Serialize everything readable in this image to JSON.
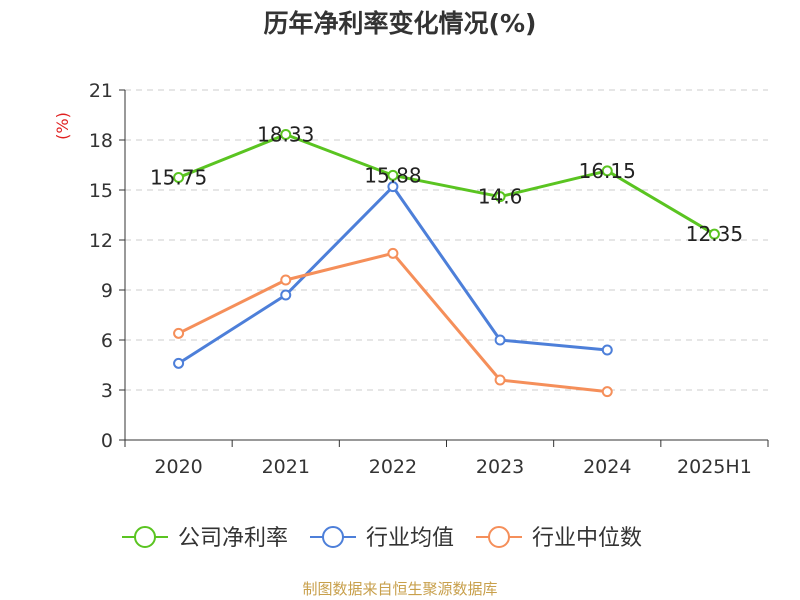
{
  "title": "历年净利率变化情况(%)",
  "source": "制图数据来自恒生聚源数据库",
  "chart_data": {
    "type": "line",
    "title": "历年净利率变化情况(%)",
    "ylabel": "(%)",
    "xlabel": "",
    "categories": [
      "2020",
      "2021",
      "2022",
      "2023",
      "2024",
      "2025H1"
    ],
    "ylim": [
      0,
      21
    ],
    "yticks": [
      0,
      3,
      6,
      9,
      12,
      15,
      18,
      21
    ],
    "grid": "horizontal dashed",
    "legend_position": "bottom",
    "series": [
      {
        "name": "公司净利率",
        "color": "#5ac421",
        "values": [
          15.75,
          18.33,
          15.88,
          14.6,
          16.15,
          12.35
        ],
        "labels": true
      },
      {
        "name": "行业均值",
        "color": "#4d7fd9",
        "values": [
          4.6,
          8.7,
          15.2,
          6.0,
          5.4,
          null
        ],
        "labels": false
      },
      {
        "name": "行业中位数",
        "color": "#f58f5a",
        "values": [
          6.4,
          9.6,
          11.2,
          3.6,
          2.9,
          null
        ],
        "labels": false
      }
    ]
  }
}
